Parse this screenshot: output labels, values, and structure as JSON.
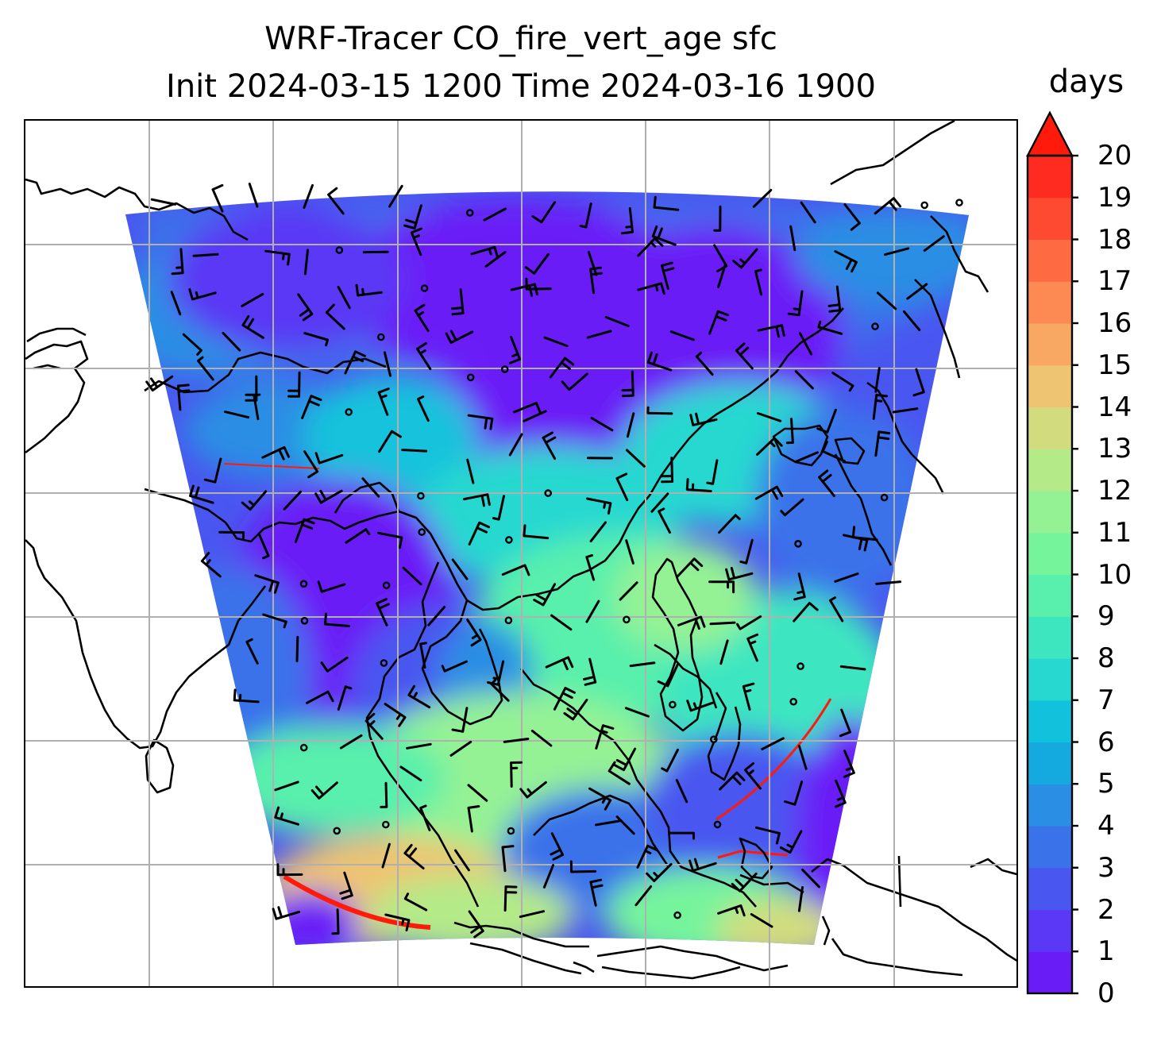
{
  "title": {
    "line1": "WRF-Tracer CO_fire_vert_age sfc",
    "line2": "Init 2024-03-15 1200 Time 2024-03-16 1900"
  },
  "colorbar": {
    "label": "days",
    "extend": "max",
    "min": 0,
    "max": 20,
    "ticks": [
      "0",
      "1",
      "2",
      "3",
      "4",
      "5",
      "6",
      "7",
      "8",
      "9",
      "10",
      "11",
      "12",
      "13",
      "14",
      "15",
      "16",
      "17",
      "18",
      "19",
      "20"
    ],
    "colors": [
      "#6a1cf7",
      "#5a38f5",
      "#4a56f0",
      "#3a72ea",
      "#2a8ee4",
      "#14aae0",
      "#12c2dc",
      "#26d8d0",
      "#3ee6c0",
      "#58f0ac",
      "#76f49c",
      "#94f294",
      "#b4ea88",
      "#d2dc7e",
      "#eec472",
      "#f8a862",
      "#fc8a52",
      "#fe6a42",
      "#ff4a32",
      "#ff2a20"
    ],
    "over_color": "#ff1a0c"
  },
  "map": {
    "field": "CO_fire_vert_age",
    "level": "sfc",
    "units": "days",
    "region": "Southeast Asia / South China Sea",
    "gridlines": true,
    "coastlines": true,
    "wind_barbs": true
  }
}
